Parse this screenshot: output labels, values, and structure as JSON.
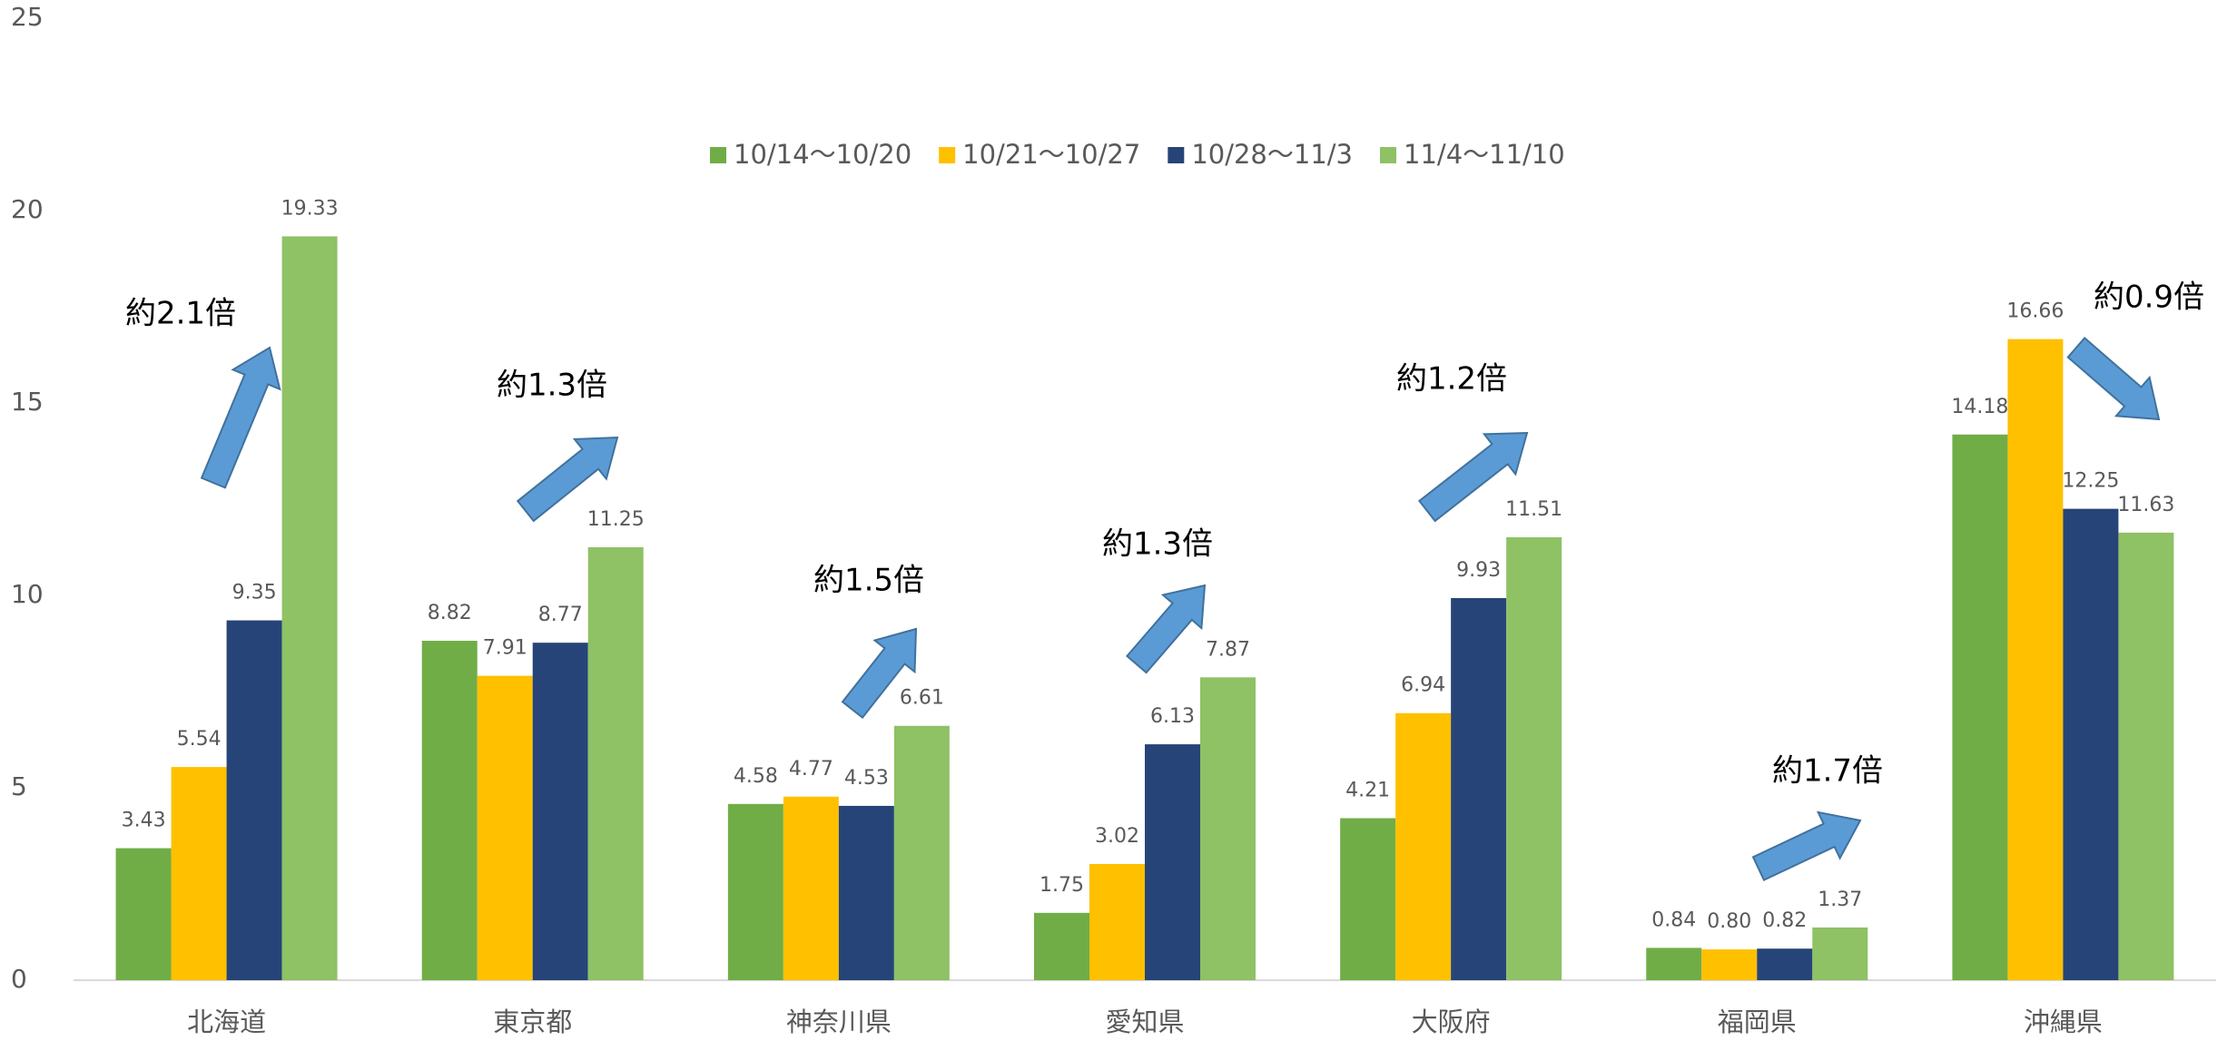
{
  "chart_data": {
    "type": "bar",
    "categories": [
      "北海道",
      "東京都",
      "神奈川県",
      "愛知県",
      "大阪府",
      "福岡県",
      "沖縄県"
    ],
    "series": [
      {
        "name": "10/14～10/20",
        "color": "#70ad47",
        "values": [
          3.43,
          8.82,
          4.58,
          1.75,
          4.21,
          0.84,
          14.18
        ]
      },
      {
        "name": "10/21～10/27",
        "color": "#ffc000",
        "values": [
          5.54,
          7.91,
          4.77,
          3.02,
          6.94,
          0.8,
          16.66
        ],
        "value_labels": [
          "5.54",
          "7.91",
          "4.77",
          "3.02",
          "6.94",
          "0.80",
          "16.66"
        ]
      },
      {
        "name": "10/28～11/3",
        "color": "#264478",
        "values": [
          9.35,
          8.77,
          4.53,
          6.13,
          9.93,
          0.82,
          12.25
        ]
      },
      {
        "name": "11/4～11/10",
        "color": "#8fc165",
        "values": [
          19.33,
          11.25,
          6.61,
          7.87,
          11.51,
          1.37,
          11.63
        ]
      }
    ],
    "annotations": [
      "約2.1倍",
      "約1.3倍",
      "約1.5倍",
      "約1.3倍",
      "約1.2倍",
      "約1.7倍",
      "約0.9倍"
    ],
    "ylim": [
      0,
      25
    ],
    "yticks": [
      0,
      5,
      10,
      15,
      20,
      25
    ],
    "grid": false,
    "legend": "top"
  }
}
